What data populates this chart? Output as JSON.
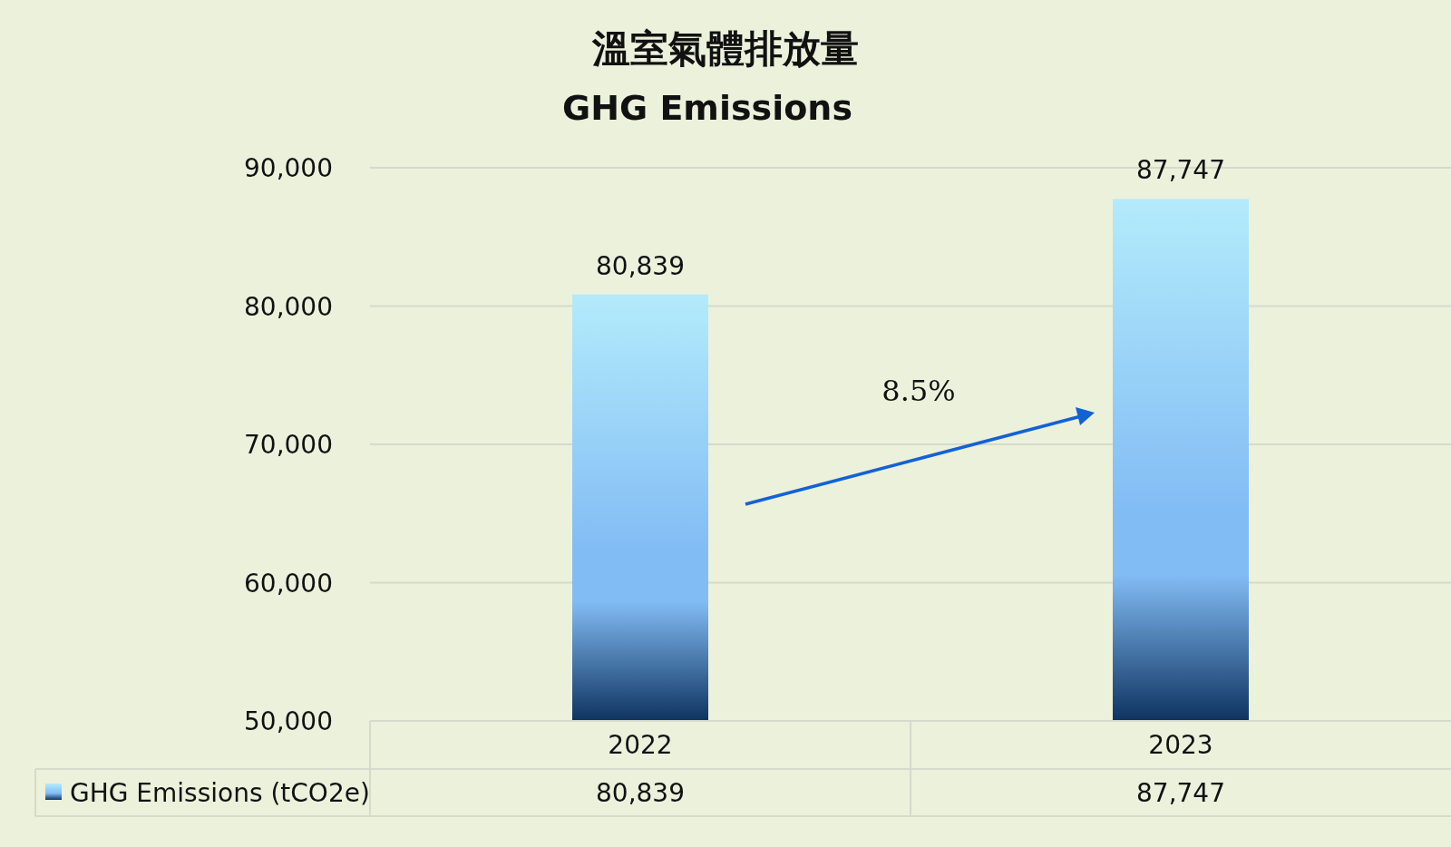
{
  "chart_data": {
    "type": "bar",
    "title": "溫室氣體排放量",
    "subtitle": "GHG Emissions",
    "categories": [
      "2022",
      "2023"
    ],
    "series": [
      {
        "name": "GHG Emissions (tCO2e)",
        "color": "#82bcf4",
        "values": [
          80839,
          87747
        ],
        "value_labels": [
          "80,839",
          "87,747"
        ]
      }
    ],
    "ylim": [
      50000,
      90000
    ],
    "yticks": [
      {
        "value": 50000,
        "label": "50,000"
      },
      {
        "value": 60000,
        "label": "60,000"
      },
      {
        "value": 70000,
        "label": "70,000"
      },
      {
        "value": 80000,
        "label": "80,000"
      },
      {
        "value": 90000,
        "label": "90,000"
      }
    ],
    "grid": "y",
    "legend": "bottom",
    "annotations": [
      "8.5%"
    ]
  }
}
